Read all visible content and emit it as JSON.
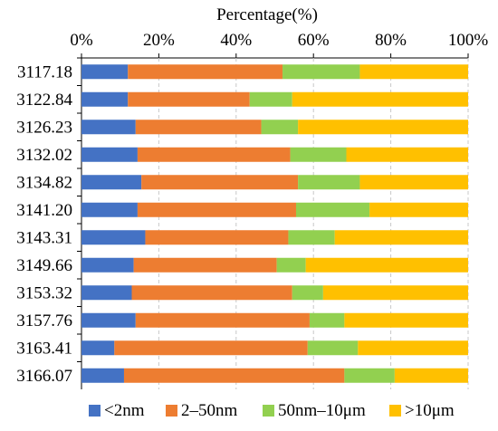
{
  "chart_data": {
    "type": "bar",
    "orientation": "horizontal",
    "stacked": true,
    "title": "",
    "xlabel": "Percentage(%)",
    "ylabel": "",
    "xlim": [
      0,
      100
    ],
    "x_axis_position": "top",
    "xticks": [
      "0%",
      "20%",
      "40%",
      "60%",
      "80%",
      "100%"
    ],
    "xtick_values": [
      0,
      20,
      40,
      60,
      80,
      100
    ],
    "grid": "vertical dashed",
    "legend_position": "bottom",
    "categories": [
      "3117.18",
      "3122.84",
      "3126.23",
      "3132.02",
      "3134.82",
      "3141.20",
      "3143.31",
      "3149.66",
      "3153.32",
      "3157.76",
      "3163.41",
      "3166.07"
    ],
    "series": [
      {
        "name": "<2nm",
        "color": "#4472C4",
        "values": [
          12.0,
          12.0,
          14.0,
          14.5,
          15.5,
          14.5,
          16.5,
          13.5,
          13.0,
          14.0,
          8.5,
          11.0
        ]
      },
      {
        "name": "2–50nm",
        "color": "#ED7D31",
        "values": [
          40.0,
          31.5,
          32.5,
          39.5,
          40.5,
          41.0,
          37.0,
          37.0,
          41.5,
          45.0,
          50.0,
          57.0
        ]
      },
      {
        "name": "50nm–10μm",
        "color": "#92D050",
        "values": [
          20.0,
          11.0,
          9.5,
          14.5,
          16.0,
          19.0,
          12.0,
          7.5,
          8.0,
          9.0,
          13.0,
          13.0
        ]
      },
      {
        "name": ">10μm",
        "color": "#FFC000",
        "values": [
          28.0,
          45.5,
          44.0,
          31.5,
          28.0,
          25.5,
          34.5,
          42.0,
          37.5,
          32.0,
          28.5,
          19.0
        ]
      }
    ]
  }
}
